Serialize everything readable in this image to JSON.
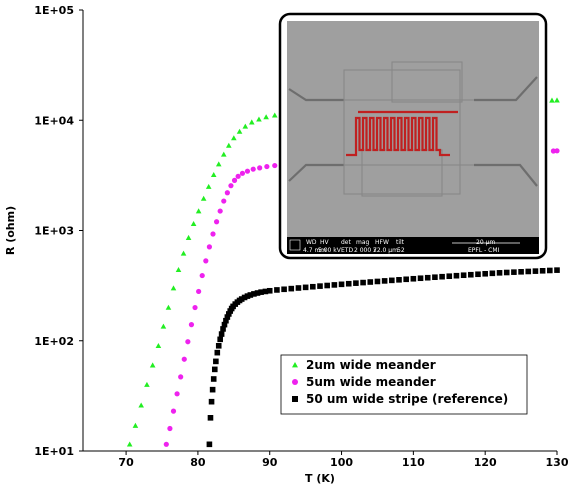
{
  "chart_data": {
    "type": "scatter",
    "title": "",
    "xlabel": "T (K)",
    "ylabel": "R (ohm)",
    "xlim": [
      64,
      130
    ],
    "ylim": [
      10,
      100000
    ],
    "yscale": "log",
    "x_ticks": [
      70,
      80,
      90,
      100,
      110,
      120,
      130
    ],
    "y_ticks": [
      {
        "value": 10,
        "label": "1E+01"
      },
      {
        "value": 100,
        "label": "1E+02"
      },
      {
        "value": 1000,
        "label": "1E+03"
      },
      {
        "value": 10000,
        "label": "1E+04"
      },
      {
        "value": 100000,
        "label": "1E+05"
      }
    ],
    "grid": false,
    "legend": "bottom-right",
    "series": [
      {
        "name": "2um wide meander",
        "marker": "triangle",
        "color": "#22ee22",
        "points": [
          [
            70.5,
            11.5
          ],
          [
            71.3,
            17
          ],
          [
            72.1,
            26
          ],
          [
            72.9,
            40
          ],
          [
            73.7,
            60
          ],
          [
            74.5,
            90
          ],
          [
            75.2,
            135
          ],
          [
            75.9,
            200
          ],
          [
            76.6,
            300
          ],
          [
            77.3,
            440
          ],
          [
            78.0,
            620
          ],
          [
            78.7,
            860
          ],
          [
            79.4,
            1150
          ],
          [
            80.1,
            1500
          ],
          [
            80.8,
            1950
          ],
          [
            81.5,
            2500
          ],
          [
            82.2,
            3200
          ],
          [
            82.9,
            4000
          ],
          [
            83.6,
            4900
          ],
          [
            84.3,
            5900
          ],
          [
            85.0,
            6900
          ],
          [
            85.8,
            7900
          ],
          [
            86.6,
            8800
          ],
          [
            87.5,
            9600
          ],
          [
            88.5,
            10200
          ],
          [
            89.5,
            10700
          ],
          [
            90.7,
            11100
          ],
          [
            92.0,
            11400
          ],
          [
            93.5,
            11700
          ],
          [
            95.0,
            11900
          ],
          [
            96.5,
            12100
          ],
          [
            98.0,
            12300
          ],
          [
            99.5,
            12500
          ],
          [
            101.0,
            12700
          ],
          [
            102.5,
            12900
          ],
          [
            104.0,
            13100
          ],
          [
            105.5,
            13300
          ],
          [
            107.0,
            13500
          ],
          [
            108.5,
            13700
          ],
          [
            110.0,
            13900
          ],
          [
            111.5,
            14000
          ],
          [
            113.0,
            14200
          ],
          [
            114.5,
            14300
          ],
          [
            116.0,
            14400
          ],
          [
            117.5,
            14500
          ],
          [
            119.0,
            14600
          ],
          [
            120.5,
            14700
          ],
          [
            122.0,
            14800
          ],
          [
            123.5,
            14900
          ],
          [
            125.0,
            15000
          ],
          [
            126.5,
            15050
          ],
          [
            128.0,
            15100
          ],
          [
            129.3,
            15150
          ],
          [
            130.0,
            15200
          ]
        ]
      },
      {
        "name": "5um wide meander",
        "marker": "circle",
        "color": "#ee22ee",
        "points": [
          [
            75.6,
            11.5
          ],
          [
            76.1,
            16
          ],
          [
            76.6,
            23
          ],
          [
            77.1,
            33
          ],
          [
            77.6,
            47
          ],
          [
            78.1,
            68
          ],
          [
            78.6,
            98
          ],
          [
            79.1,
            140
          ],
          [
            79.6,
            200
          ],
          [
            80.1,
            280
          ],
          [
            80.6,
            390
          ],
          [
            81.1,
            530
          ],
          [
            81.6,
            710
          ],
          [
            82.1,
            930
          ],
          [
            82.6,
            1200
          ],
          [
            83.1,
            1500
          ],
          [
            83.6,
            1850
          ],
          [
            84.1,
            2200
          ],
          [
            84.6,
            2550
          ],
          [
            85.1,
            2850
          ],
          [
            85.6,
            3100
          ],
          [
            86.2,
            3300
          ],
          [
            86.9,
            3450
          ],
          [
            87.7,
            3600
          ],
          [
            88.6,
            3700
          ],
          [
            89.6,
            3800
          ],
          [
            90.7,
            3880
          ],
          [
            92.0,
            3950
          ],
          [
            93.5,
            4020
          ],
          [
            95.0,
            4100
          ],
          [
            96.5,
            4150
          ],
          [
            98.0,
            4200
          ],
          [
            100.0,
            4270
          ],
          [
            102.0,
            4340
          ],
          [
            104.0,
            4410
          ],
          [
            106.0,
            4480
          ],
          [
            108.0,
            4550
          ],
          [
            110.0,
            4620
          ],
          [
            112.0,
            4690
          ],
          [
            114.0,
            4760
          ],
          [
            116.0,
            4830
          ],
          [
            118.0,
            4900
          ],
          [
            120.0,
            4970
          ],
          [
            122.0,
            5040
          ],
          [
            124.0,
            5100
          ],
          [
            126.0,
            5160
          ],
          [
            128.0,
            5220
          ],
          [
            129.5,
            5260
          ],
          [
            130.0,
            5280
          ]
        ]
      },
      {
        "name": "50 um wide stripe (reference)",
        "marker": "square",
        "color": "#000000",
        "points": [
          [
            81.6,
            11.5
          ],
          [
            81.75,
            20
          ],
          [
            81.9,
            28
          ],
          [
            82.05,
            36
          ],
          [
            82.2,
            45
          ],
          [
            82.35,
            55
          ],
          [
            82.5,
            65
          ],
          [
            82.7,
            78
          ],
          [
            82.9,
            90
          ],
          [
            83.1,
            103
          ],
          [
            83.3,
            115
          ],
          [
            83.5,
            128
          ],
          [
            83.7,
            140
          ],
          [
            83.9,
            152
          ],
          [
            84.1,
            164
          ],
          [
            84.3,
            175
          ],
          [
            84.5,
            186
          ],
          [
            84.7,
            196
          ],
          [
            84.9,
            205
          ],
          [
            85.2,
            215
          ],
          [
            85.5,
            224
          ],
          [
            85.8,
            232
          ],
          [
            86.1,
            239
          ],
          [
            86.5,
            247
          ],
          [
            86.9,
            254
          ],
          [
            87.3,
            260
          ],
          [
            87.8,
            266
          ],
          [
            88.3,
            271
          ],
          [
            88.8,
            276
          ],
          [
            89.4,
            280
          ],
          [
            90.0,
            284
          ],
          [
            91.0,
            289
          ],
          [
            92.0,
            293
          ],
          [
            93.0,
            297
          ],
          [
            94.0,
            301
          ],
          [
            95.0,
            305
          ],
          [
            96.0,
            309
          ],
          [
            97.0,
            313
          ],
          [
            98.0,
            317
          ],
          [
            99.0,
            321
          ],
          [
            100.0,
            325
          ],
          [
            101.0,
            329
          ],
          [
            102.0,
            333
          ],
          [
            103.0,
            337
          ],
          [
            104.0,
            341
          ],
          [
            105.0,
            345
          ],
          [
            106.0,
            349
          ],
          [
            107.0,
            353
          ],
          [
            108.0,
            357
          ],
          [
            109.0,
            361
          ],
          [
            110.0,
            365
          ],
          [
            111.0,
            369
          ],
          [
            112.0,
            373
          ],
          [
            113.0,
            377
          ],
          [
            114.0,
            381
          ],
          [
            115.0,
            385
          ],
          [
            116.0,
            389
          ],
          [
            117.0,
            393
          ],
          [
            118.0,
            397
          ],
          [
            119.0,
            401
          ],
          [
            120.0,
            405
          ],
          [
            121.0,
            409
          ],
          [
            122.0,
            413
          ],
          [
            123.0,
            416
          ],
          [
            124.0,
            419
          ],
          [
            125.0,
            422
          ],
          [
            126.0,
            425
          ],
          [
            127.0,
            428
          ],
          [
            128.0,
            431
          ],
          [
            129.0,
            434
          ],
          [
            130.0,
            437
          ]
        ]
      }
    ]
  },
  "inset": {
    "footer_headers": [
      "WD",
      "HV",
      "det",
      "mag",
      "HFW",
      "tilt"
    ],
    "footer_values": [
      "4.7 mm",
      "5.00 kV",
      "ETD",
      "2 000 x",
      "72.0 µm",
      "52"
    ],
    "scale_label": "20 µm",
    "credit": "EPFL - CMI"
  },
  "colors": {
    "inset_border": "#000000",
    "meander_overlay": "#c02020",
    "sem_background": "#9a9a9a"
  }
}
